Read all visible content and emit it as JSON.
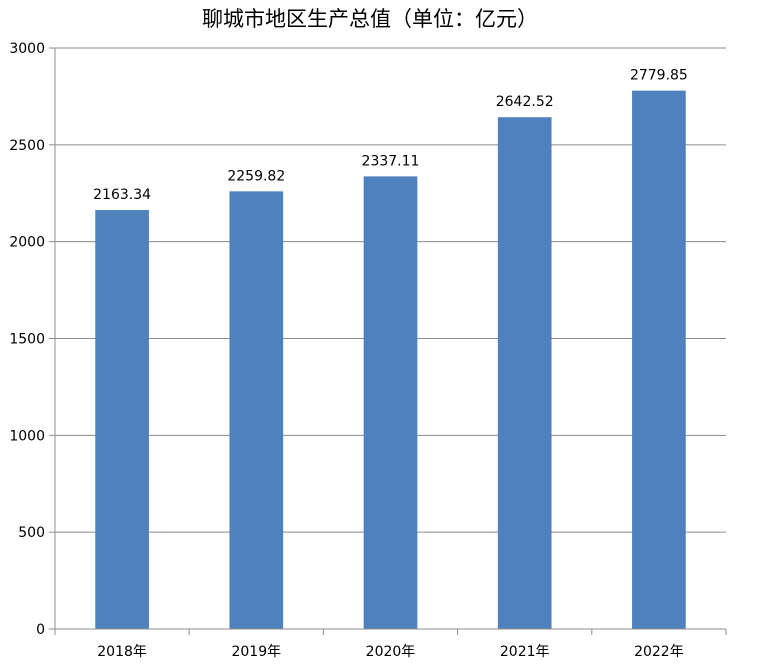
{
  "chart_data": {
    "type": "bar",
    "title": "聊城市地区生产总值（单位：亿元）",
    "categories": [
      "2018年",
      "2019年",
      "2020年",
      "2021年",
      "2022年"
    ],
    "values": [
      2163.34,
      2259.82,
      2337.11,
      2642.52,
      2779.85
    ],
    "value_labels": [
      "2163.34",
      "2259.82",
      "2337.11",
      "2642.52",
      "2779.85"
    ],
    "ylim": [
      0,
      3000
    ],
    "yticks": [
      "0",
      "500",
      "1000",
      "1500",
      "2000",
      "2500",
      "3000"
    ],
    "grid": true,
    "legend": "none",
    "bar_color": "#4f81bd"
  }
}
